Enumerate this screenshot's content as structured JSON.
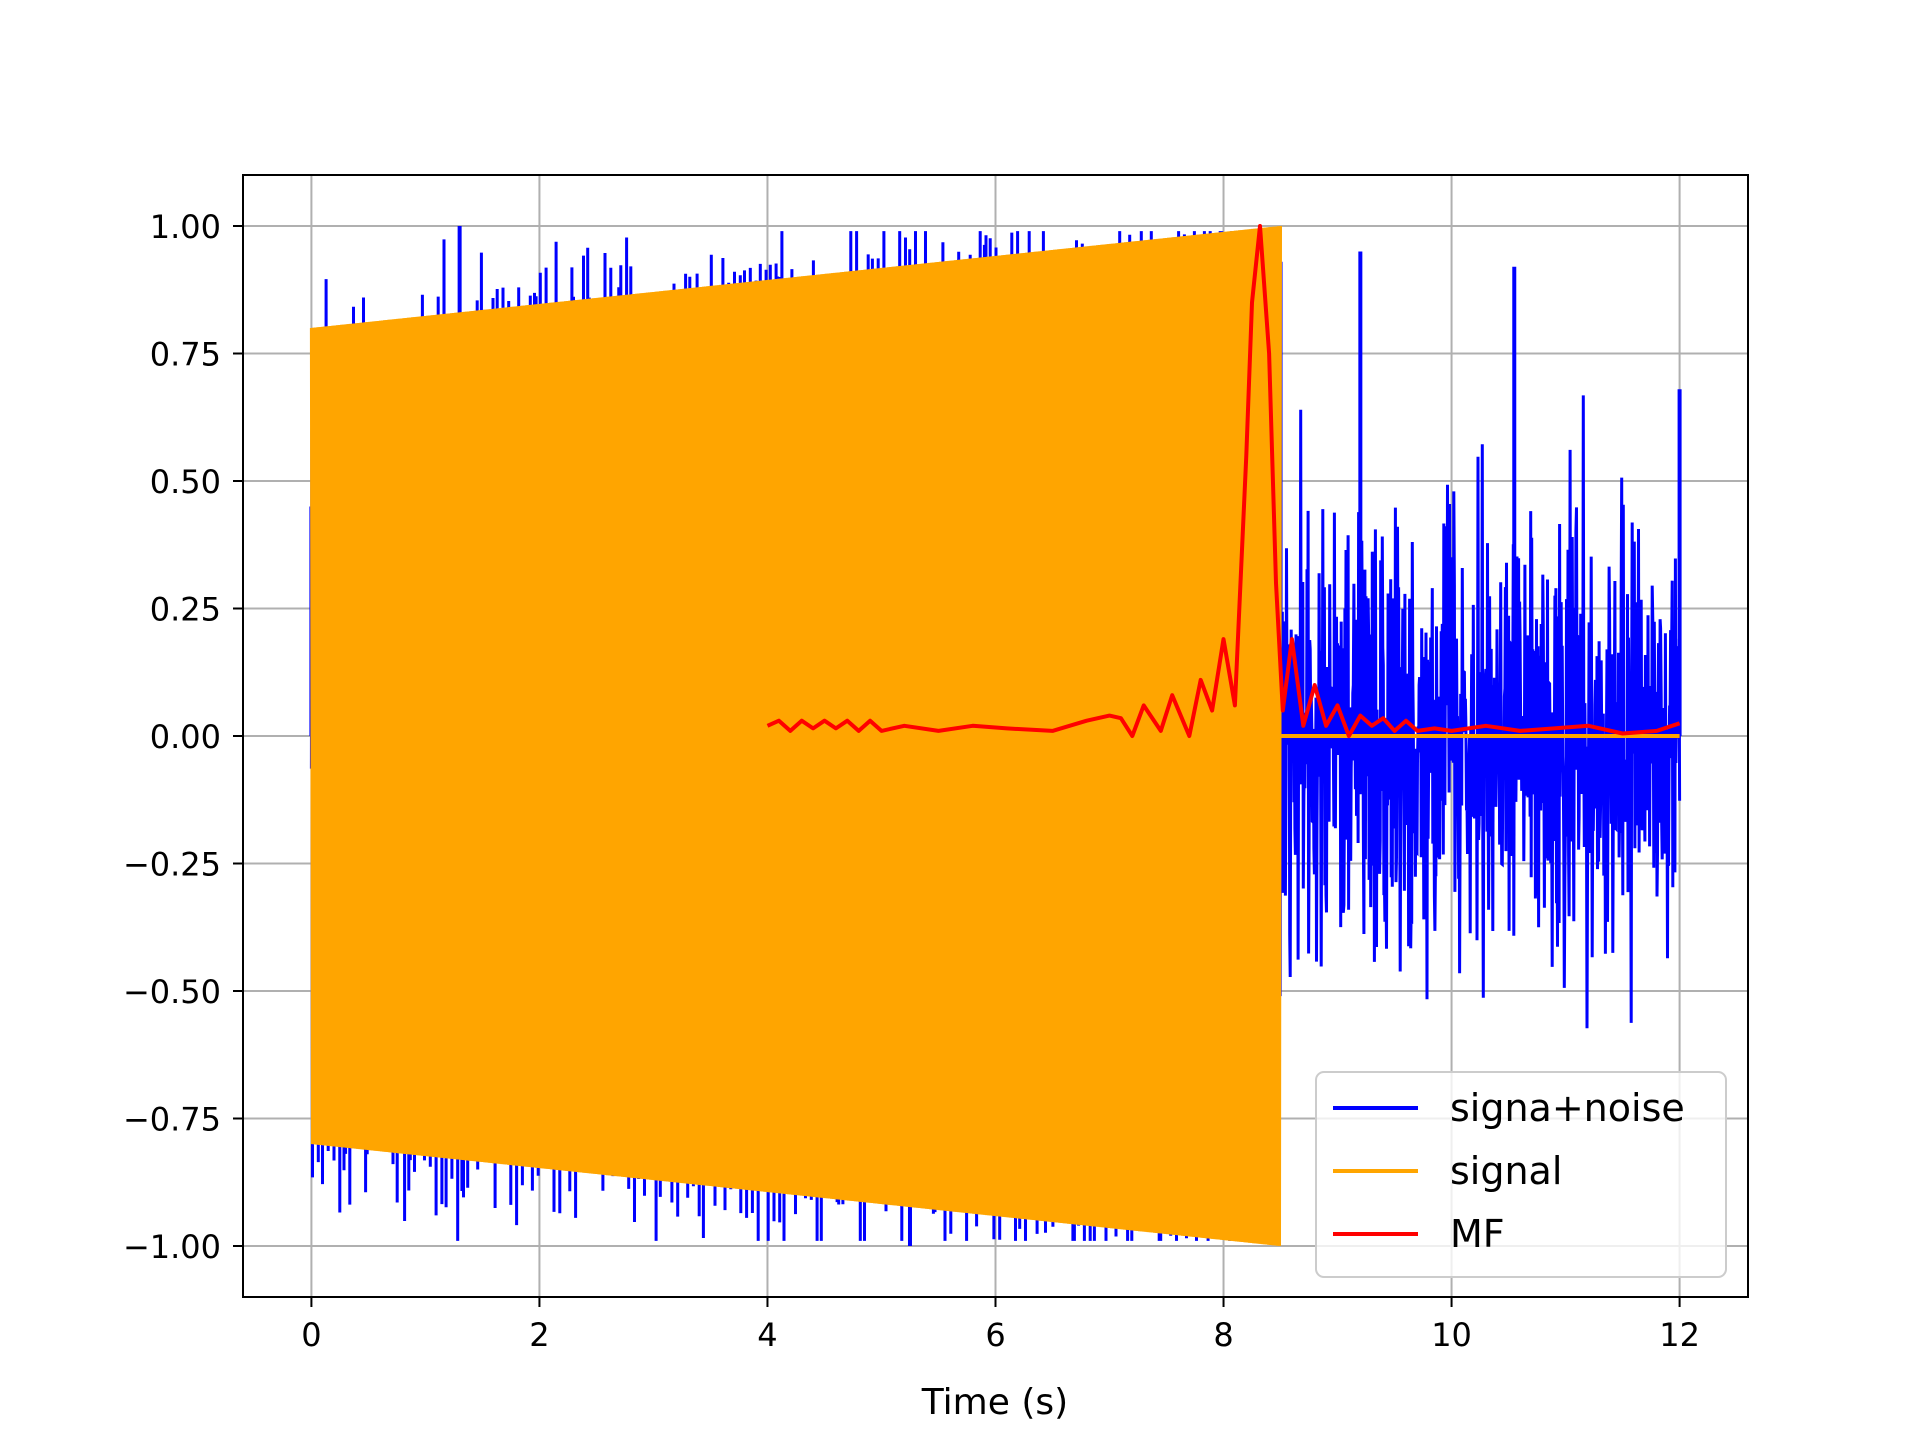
{
  "chart_data": {
    "type": "line",
    "title": "",
    "xlabel": "Time (s)",
    "ylabel": "",
    "xlim": [
      -0.6,
      12.6
    ],
    "ylim": [
      -1.1,
      1.1
    ],
    "grid": true,
    "legend_position": "lower-right",
    "x_ticks": [
      0,
      2,
      4,
      6,
      8,
      10,
      12
    ],
    "x_tick_labels": [
      "0",
      "2",
      "4",
      "6",
      "8",
      "10",
      "12"
    ],
    "y_ticks": [
      1.0,
      0.75,
      0.5,
      0.25,
      0.0,
      -0.25,
      -0.5,
      -0.75,
      -1.0
    ],
    "y_tick_labels": [
      "1.00",
      "0.75",
      "0.50",
      "0.25",
      "0.00",
      "−0.25",
      "−0.50",
      "−0.75",
      "−1.00"
    ],
    "series": [
      {
        "name": "signa+noise",
        "color": "#0000ff",
        "description_points": {
          "x": [
            0.0,
            1.3,
            2.7,
            4.1,
            5.25,
            6.8,
            8.5,
            9.2,
            10.55,
            12.0
          ],
          "y": [
            0.45,
            1.0,
            0.88,
            0.9,
            -1.0,
            0.94,
            0.93,
            0.95,
            0.92,
            0.68
          ]
        }
      },
      {
        "name": "signal",
        "color": "#ffa500",
        "envelope": {
          "x": [
            0.0,
            8.5
          ],
          "amplitude": [
            0.8,
            1.0
          ]
        },
        "after": {
          "x": [
            8.5,
            12.0
          ],
          "y": [
            0.0,
            0.0
          ]
        }
      },
      {
        "name": "MF",
        "color": "#ff0000",
        "x": [
          4.0,
          4.1,
          4.2,
          4.3,
          4.4,
          4.5,
          4.6,
          4.7,
          4.8,
          4.9,
          5.0,
          5.2,
          5.5,
          5.8,
          6.1,
          6.5,
          6.8,
          7.0,
          7.1,
          7.2,
          7.3,
          7.45,
          7.55,
          7.7,
          7.8,
          7.9,
          8.0,
          8.1,
          8.2,
          8.25,
          8.32,
          8.4,
          8.46,
          8.52,
          8.6,
          8.7,
          8.8,
          8.9,
          9.0,
          9.1,
          9.2,
          9.3,
          9.4,
          9.5,
          9.6,
          9.7,
          9.85,
          10.0,
          10.3,
          10.6,
          10.9,
          11.2,
          11.5,
          11.8,
          12.0
        ],
        "y": [
          0.02,
          0.03,
          0.01,
          0.03,
          0.015,
          0.03,
          0.015,
          0.03,
          0.01,
          0.03,
          0.01,
          0.02,
          0.01,
          0.02,
          0.015,
          0.01,
          0.03,
          0.04,
          0.035,
          0.0,
          0.06,
          0.01,
          0.08,
          0.0,
          0.11,
          0.05,
          0.19,
          0.06,
          0.55,
          0.85,
          1.0,
          0.75,
          0.3,
          0.05,
          0.19,
          0.02,
          0.1,
          0.02,
          0.06,
          0.0,
          0.04,
          0.02,
          0.035,
          0.01,
          0.03,
          0.01,
          0.015,
          0.01,
          0.02,
          0.01,
          0.015,
          0.02,
          0.005,
          0.01,
          0.025
        ]
      }
    ]
  }
}
